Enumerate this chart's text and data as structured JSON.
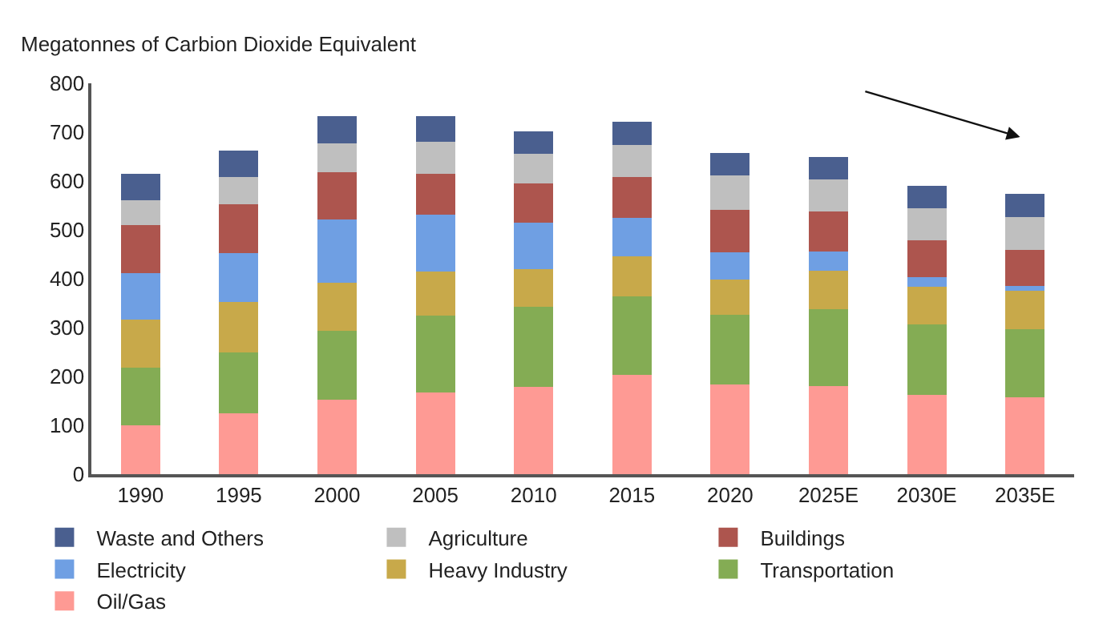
{
  "chart_data": {
    "type": "bar",
    "stacked": true,
    "ylabel": "Megatonnes of Carbion Dioxide Equivalent",
    "categories": [
      "1990",
      "1995",
      "2000",
      "2005",
      "2010",
      "2015",
      "2020",
      "2025E",
      "2030E",
      "2035E"
    ],
    "series": [
      {
        "name": "Oil/Gas",
        "color": "#fe9a94",
        "values": [
          100,
          124,
          153,
          168,
          178,
          203,
          183,
          180,
          162,
          158
        ]
      },
      {
        "name": "Transportation",
        "color": "#84ac54",
        "values": [
          118,
          126,
          141,
          157,
          165,
          161,
          143,
          157,
          144,
          138
        ]
      },
      {
        "name": "Heavy Industry",
        "color": "#c8a94a",
        "values": [
          98,
          103,
          98,
          89,
          77,
          82,
          73,
          79,
          78,
          79
        ]
      },
      {
        "name": "Electricity",
        "color": "#6f9fe3",
        "values": [
          95,
          99,
          130,
          117,
          95,
          79,
          55,
          40,
          20,
          11
        ]
      },
      {
        "name": "Buildings",
        "color": "#ad554e",
        "values": [
          99,
          100,
          96,
          84,
          80,
          84,
          87,
          81,
          75,
          73
        ]
      },
      {
        "name": "Agriculture",
        "color": "#bfbfbf",
        "values": [
          50,
          57,
          59,
          65,
          61,
          65,
          70,
          67,
          66,
          67
        ]
      },
      {
        "name": "Waste and Others",
        "color": "#4a5f8f",
        "values": [
          54,
          53,
          55,
          53,
          45,
          48,
          47,
          46,
          46,
          47
        ]
      }
    ],
    "ylim": [
      0,
      800
    ],
    "yticks": [
      0,
      100,
      200,
      300,
      400,
      500,
      600,
      700,
      800
    ],
    "grid": false,
    "legend": "bottom"
  }
}
